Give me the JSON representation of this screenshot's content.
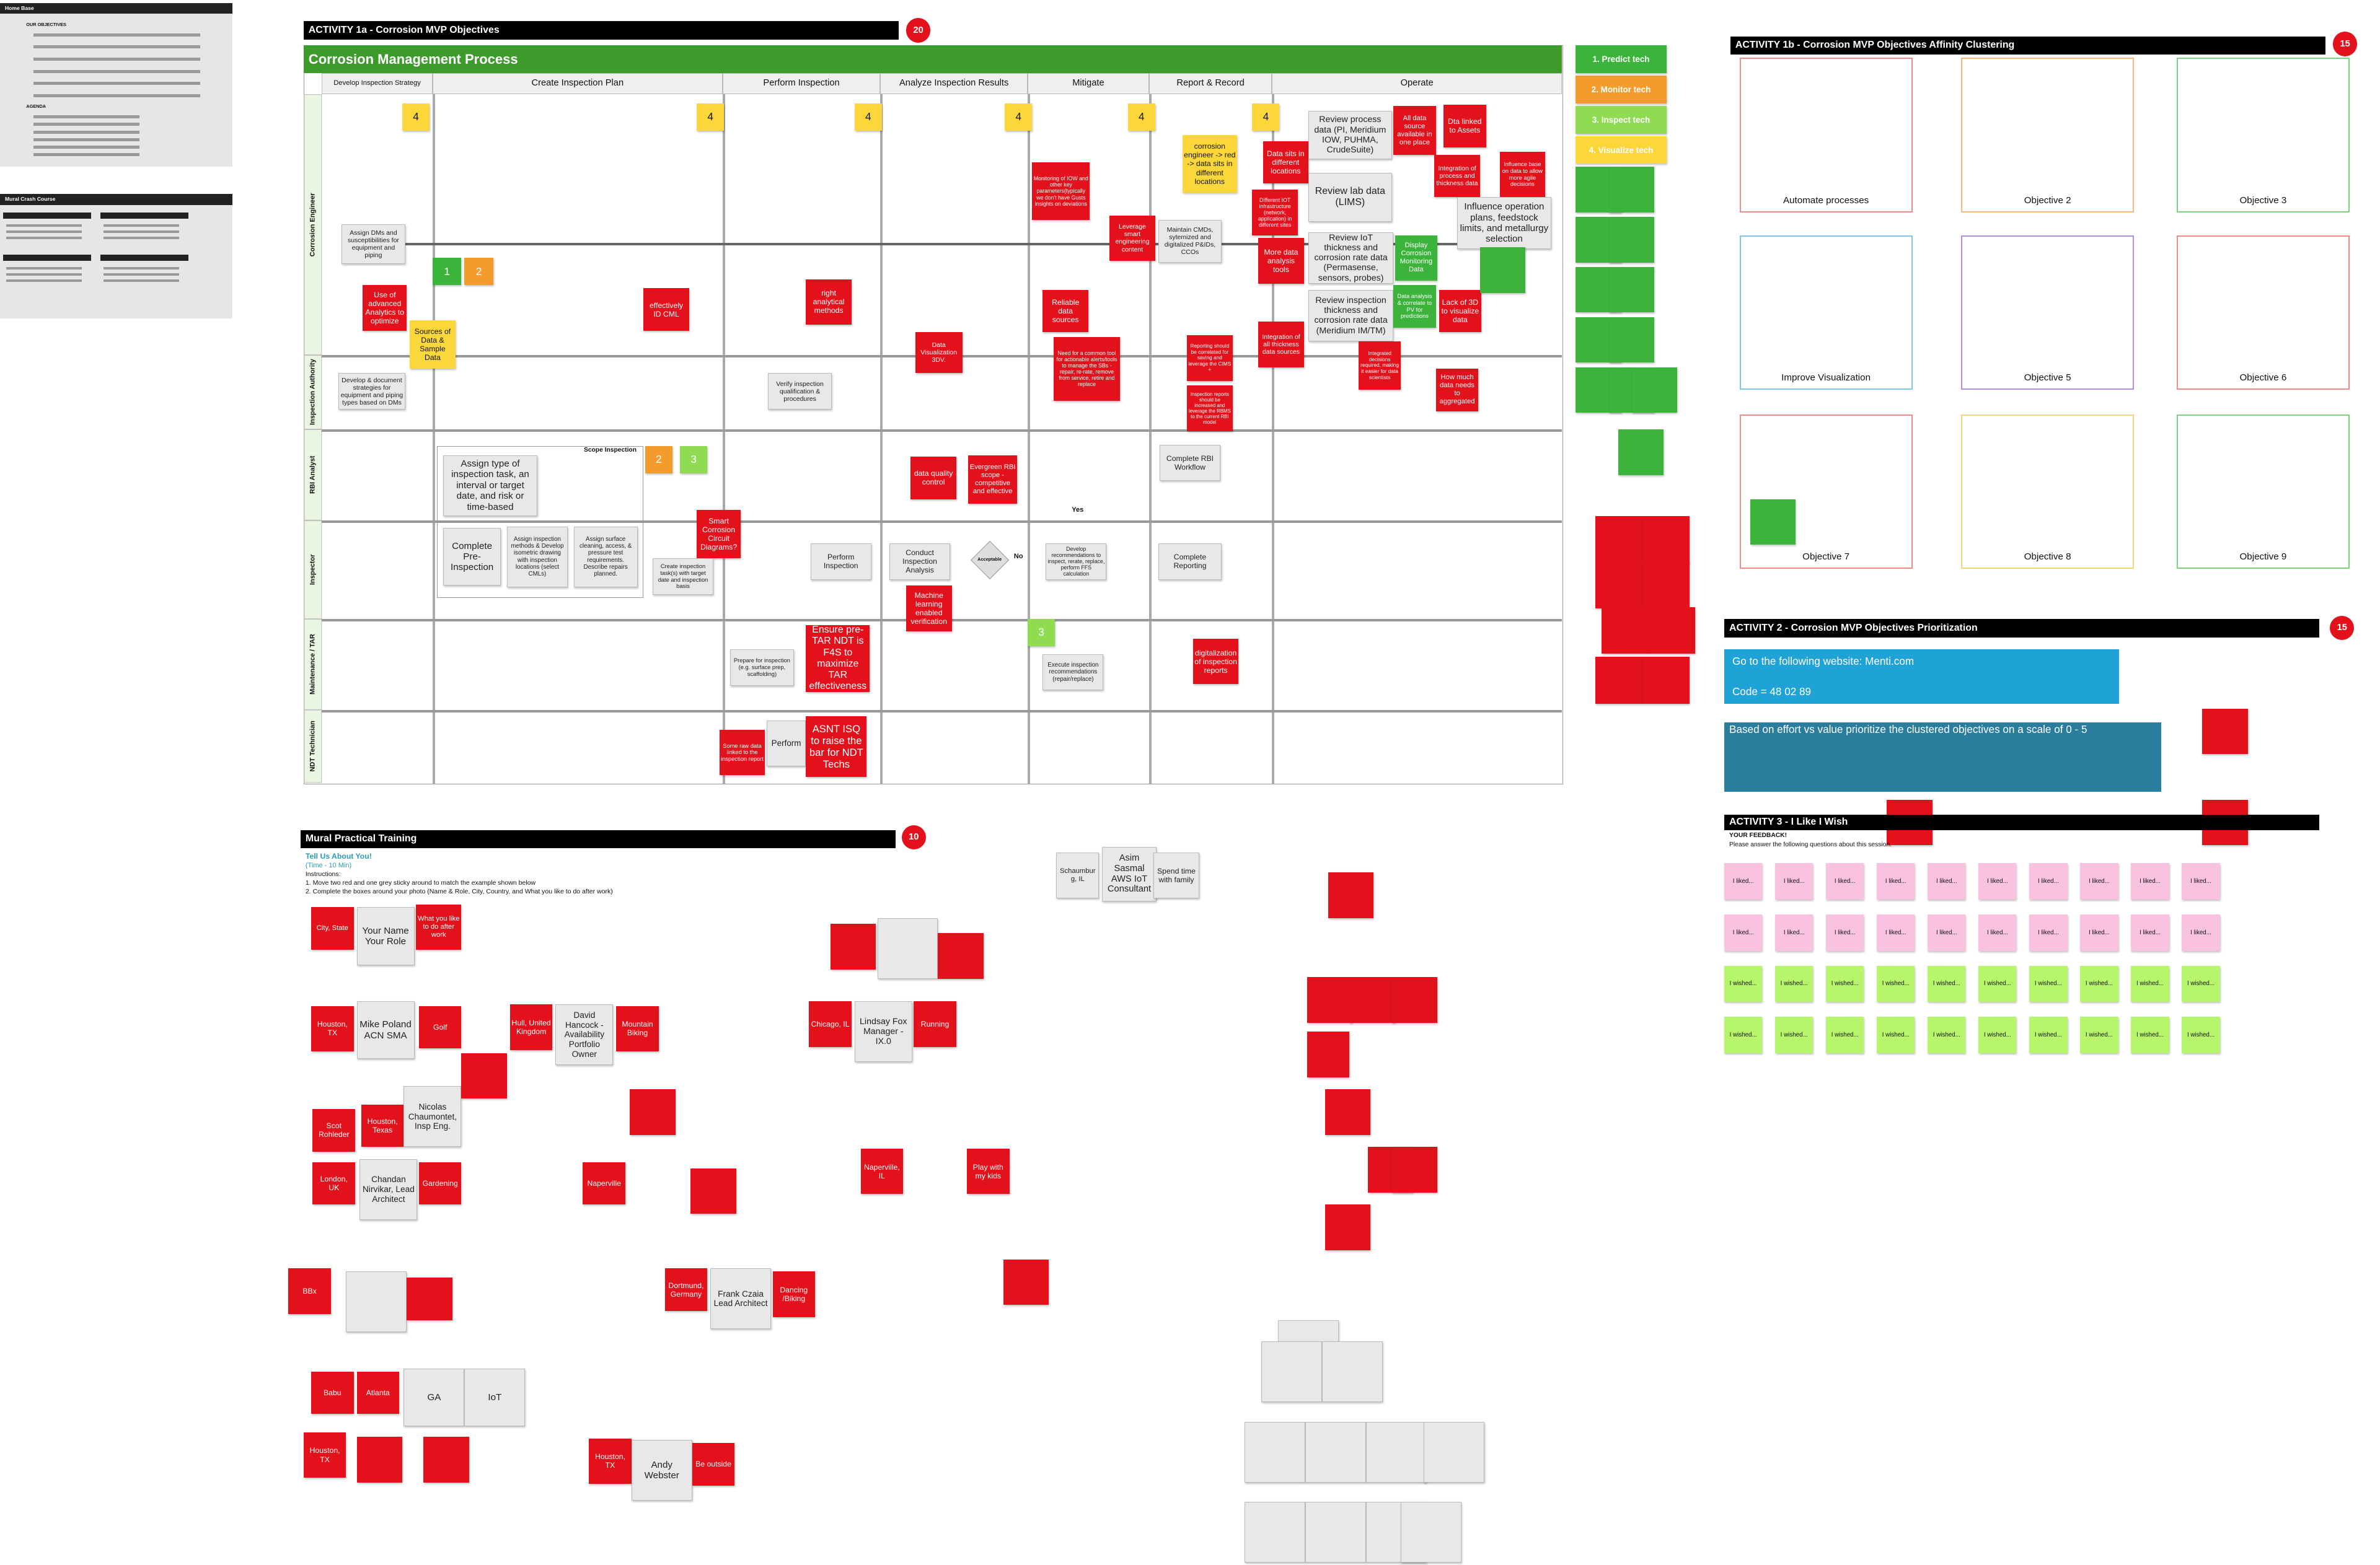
{
  "sidebar": {
    "home_title": "Home Base",
    "objectives_heading": "OUR OBJECTIVES",
    "agenda_heading": "AGENDA",
    "crash_title": "Mural Crash Course"
  },
  "activity1a": {
    "title": "ACTIVITY 1a - Corrosion MVP Objectives",
    "timer": "20",
    "process_title": "Corrosion Management Process",
    "phases": [
      "Develop Inspection Strategy",
      "Create Inspection Plan",
      "Perform Inspection",
      "Analyze Inspection Results",
      "Mitigate",
      "Report & Record",
      "Operate"
    ],
    "lanes": [
      "Corrosion Engineer",
      "Inspection Authority",
      "RBI Analyst",
      "Inspector",
      "Maintenance / TAR",
      "NDT Technician"
    ],
    "notes": [
      "4",
      "4",
      "4",
      "4",
      "4",
      "4",
      "1",
      "2",
      "2",
      "3",
      "3",
      "Assign DMs and susceptibilities for equipment and piping",
      "Use of advanced Analytics to optimize",
      "Sources of Data & Sample Data",
      "Develop & document strategies for equipment and piping types based on DMs",
      "effectively ID CML",
      "right analytical methods",
      "Data Visualization 3DV.",
      "Monitoring of IOW and other key parameters(typically we don't have Gusts insights on deviations",
      "Leverage smart engineering content",
      "Reliable data sources",
      "Need for a common tool for actionable alerts/tools to manage the SBs - repair, re-rate, remove from service, retire and replace",
      "Maintain CMDs, sytemized and digitalized P&IDs, CCOs",
      "corrosion engineer -> red -> data sits in different locations",
      "Reporting should be correlated for saving and leverage the CIMS +",
      "Inspection reports should be increased and leverage the RBMS to the current RBI model",
      "Data sits in different locations",
      "Different IOT infrastructure (network, application) in different sites",
      "More data analysis tools",
      "Integration of all thickness data sources",
      "Review process data (PI, Meridium IOW, PUHMA, CrudeSuite)",
      "Review lab data (LIMS)",
      "Review IoT thickness and corrosion rate data (Permasense, sensors, probes)",
      "Review inspection thickness and corrosion rate data (Meridium IM/TM)",
      "All data source available in one place",
      "Dta linked to Assets",
      "Integration of process and thickness data",
      "Influence base on data to allow more agile decisions",
      "Influence operation plans, feedstock limits, and metallurgy selection",
      "Display Corrosion Monitoring Data",
      "Data analysis & correlate to PV for predictions",
      "Lack of 3D to visualize data",
      "Integrated decisions required, making it easier for data scientists",
      "How much data needs to aggregated",
      "Verify inspection qualification & procedures",
      "Scope Inspection",
      "Assign type of inspection task, an interval or target date, and risk or time-based",
      "Complete Pre-Inspection",
      "Assign inspection methods & Develop isometric drawing with inspection locations (select CMLs)",
      "Assign surface cleaning, access, & pressure test requirements. Describe repairs planned.",
      "Smart Corrosion Circuit Diagrams?",
      "Create inspection task(s) with target date and inspection basis",
      "data quality control",
      "Evergreen RBI scope - competitive and effective",
      "Complete RBI Workflow",
      "Perform Inspection",
      "Conduct Inspection Analysis",
      "Acceptable",
      "No",
      "Yes",
      "Develop recommendations to inspect, rerate, replace, perform FFS calculation",
      "Complete Reporting",
      "Machine learning enabled verification",
      "Ensure pre-TAR NDT is F4S to maximize TAR effectiveness",
      "Prepare for inspection (e.g. surface prep, scaffolding)",
      "Execute inspection recommendations (repair/replace)",
      "digitalization of inspection reports",
      "Some raw data linked to the inspection report",
      "Perform",
      "ASNT ISQ to raise the bar for NDT Techs"
    ]
  },
  "legend": [
    "1. Predict tech",
    "2. Monitor tech",
    "3. Inspect tech",
    "4. Visualize tech"
  ],
  "activity1b": {
    "title": "ACTIVITY 1b - Corrosion MVP Objectives Affinity Clustering",
    "timer": "15",
    "objectives": [
      "Automate processes",
      "Objective 2",
      "Objective 3",
      "Improve Visualization",
      "Objective 5",
      "Objective 6",
      "Objective 7",
      "Objective 8",
      "Objective 9"
    ]
  },
  "activity2": {
    "title": "ACTIVITY 2 - Corrosion MVP Objectives Prioritization",
    "timer": "15",
    "website": "Go to the following website: Menti.com",
    "code": "Code = 48 02 89",
    "instruction": "Based on effort vs value prioritize the clustered objectives on a scale of 0 - 5"
  },
  "activity3": {
    "title": "ACTIVITY 3 - I Like I Wish",
    "feedback": "YOUR FEEDBACK!",
    "prompt": "Please answer the following questions about this session.",
    "liked": [
      "I liked...",
      "I liked...",
      "I liked...",
      "I liked...",
      "I liked...",
      "I liked...",
      "I liked...",
      "I liked...",
      "I liked...",
      "I liked...",
      "I liked...",
      "I liked...",
      "I liked...",
      "I liked...",
      "I liked...",
      "I liked...",
      "I liked...",
      "I liked...",
      "I liked...",
      "I liked..."
    ],
    "wished": [
      "I wished...",
      "I wished...",
      "I wished...",
      "I wished...",
      "I wished...",
      "I wished...",
      "I wished...",
      "I wished...",
      "I wished...",
      "I wished...",
      "I wished...",
      "I wished...",
      "I wished...",
      "I wished...",
      "I wished...",
      "I wished...",
      "I wished...",
      "I wished...",
      "I wished...",
      "I wished..."
    ]
  },
  "training": {
    "title": "Mural Practical Training",
    "timer": "10",
    "subtitle": "Tell Us About You!",
    "time": "(Time - 10 Min)",
    "instructions": [
      "Instructions:",
      "1. Move two red and one grey sticky around to match the example shown below",
      "2. Complete the boxes around your photo (Name & Role, City, Country, and What you like to do after work)"
    ],
    "people": [
      "City, State",
      "Your Name Your Role",
      "What you like to do after work",
      "Houston, TX",
      "Mike Poland ACN SMA",
      "Golf",
      "Hull, United Kingdom",
      "David Hancock - Availability Portfolio Owner",
      "Mountain Biking",
      "Scot Rohleder",
      "Houston, Texas",
      "Nicolas Chaumontet, Insp Eng.",
      "London, UK",
      "Chandan Nirvikar, Lead Architect",
      "Gardening",
      "Naperville",
      "BBx",
      "Dortmund, Germany",
      "Frank Czaia Lead Architect",
      "Dancing /Biking",
      "Babu",
      "Atlanta",
      "GA",
      "IoT",
      "Houston, TX",
      "Houston, TX",
      "Andy Webster",
      "Be outside",
      "Schaumburg, IL",
      "Asim Sasmal AWS IoT Consultant",
      "Spend time with family",
      "Chicago, IL",
      "Lindsay Fox Manager - IX.0",
      "Running",
      "Naperville, IL",
      "Play with my kids"
    ]
  }
}
